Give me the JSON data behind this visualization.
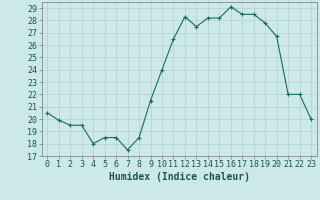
{
  "x": [
    0,
    1,
    2,
    3,
    4,
    5,
    6,
    7,
    8,
    9,
    10,
    11,
    12,
    13,
    14,
    15,
    16,
    17,
    18,
    19,
    20,
    21,
    22,
    23
  ],
  "y": [
    20.5,
    19.9,
    19.5,
    19.5,
    18.0,
    18.5,
    18.5,
    17.5,
    18.5,
    21.5,
    24.0,
    26.5,
    28.3,
    27.5,
    28.2,
    28.2,
    29.1,
    28.5,
    28.5,
    27.8,
    26.7,
    22.0,
    22.0,
    20.0
  ],
  "line_color": "#1a6b5a",
  "marker": "+",
  "marker_size": 3,
  "bg_color": "#cce8e8",
  "grid_color": "#b0d0d0",
  "xlabel": "Humidex (Indice chaleur)",
  "ylim": [
    17,
    29.5
  ],
  "xlim": [
    -0.5,
    23.5
  ],
  "yticks": [
    17,
    18,
    19,
    20,
    21,
    22,
    23,
    24,
    25,
    26,
    27,
    28,
    29
  ],
  "xticks": [
    0,
    1,
    2,
    3,
    4,
    5,
    6,
    7,
    8,
    9,
    10,
    11,
    12,
    13,
    14,
    15,
    16,
    17,
    18,
    19,
    20,
    21,
    22,
    23
  ],
  "xlabel_fontsize": 7,
  "tick_fontsize": 6,
  "text_color": "#1a5555",
  "spine_color": "#777777",
  "linewidth": 0.8
}
